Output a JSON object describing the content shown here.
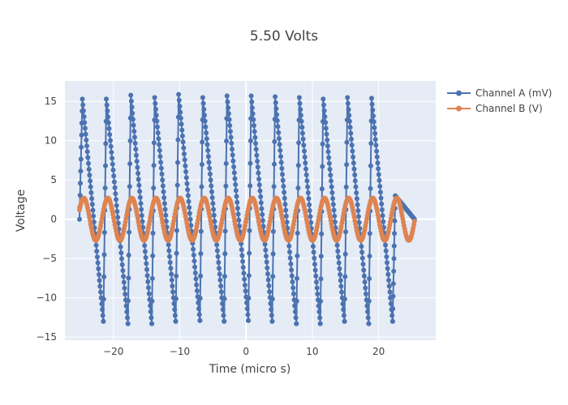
{
  "chart_data": {
    "type": "line",
    "title": "5.50 Volts",
    "xlabel": "Time (micro s)",
    "ylabel": "Voltage",
    "xlim": [
      -27.3,
      28.6
    ],
    "ylim": [
      -15.4,
      17.6
    ],
    "x_ticks": [
      -20,
      -10,
      0,
      10,
      20
    ],
    "x_tick_labels": [
      "−20",
      "−10",
      "0",
      "10",
      "20"
    ],
    "y_ticks": [
      -15,
      -10,
      -5,
      0,
      5,
      10,
      15
    ],
    "y_tick_labels": [
      "−15",
      "−10",
      "−5",
      "0",
      "5",
      "10",
      "15"
    ],
    "grid": true,
    "legend_position": "top-right",
    "x_range": [
      -25.1,
      25.4
    ],
    "series": [
      {
        "name": "Channel A (mV)",
        "color": "#4c72b0",
        "shape": "sawtooth",
        "periods": 14,
        "cycle_start_times": [
          -25.1,
          -21.5,
          -17.8,
          -14.2,
          -10.6,
          -6.95,
          -3.3,
          0.35,
          3.95,
          7.6,
          11.2,
          14.85,
          18.5,
          22.1
        ],
        "peak_values": [
          15.3,
          15.3,
          15.8,
          15.5,
          15.9,
          15.5,
          15.7,
          15.7,
          15.6,
          15.5,
          15.3,
          15.5,
          15.4,
          3.0
        ],
        "trough_values": [
          -13.0,
          -13.3,
          -13.3,
          -13.0,
          -12.9,
          -13.0,
          -12.9,
          -13.0,
          -13.3,
          -13.3,
          -13.0,
          -13.3,
          -13.0,
          0.0
        ],
        "start_value": 0.0,
        "points_per_cycle": 48
      },
      {
        "name": "Channel B (V)",
        "color": "#dd8452",
        "shape": "sine",
        "amplitude": 2.7,
        "period": 3.63,
        "start_time": -25.1,
        "start_value": 1.2,
        "points": 540
      }
    ]
  }
}
